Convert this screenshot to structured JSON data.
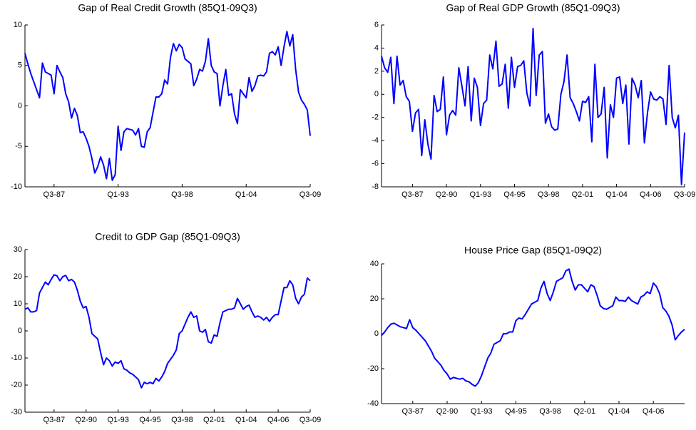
{
  "chart_data": [
    {
      "type": "line",
      "title": "Gap of Real Credit Growth (85Q1-09Q3)",
      "color": "#0000ff",
      "categories": [
        null,
        null,
        null,
        null,
        null,
        null,
        null,
        null,
        null,
        null,
        "Q3-87",
        null,
        null,
        null,
        null,
        null,
        null,
        null,
        null,
        null,
        null,
        null,
        null,
        null,
        null,
        null,
        null,
        null,
        null,
        null,
        null,
        null,
        "Q1-93",
        null,
        null,
        null,
        null,
        null,
        null,
        null,
        null,
        null,
        null,
        null,
        null,
        null,
        null,
        null,
        null,
        null,
        null,
        null,
        null,
        null,
        "Q3-98",
        null,
        null,
        null,
        null,
        null,
        null,
        null,
        null,
        null,
        null,
        null,
        null,
        null,
        null,
        null,
        null,
        null,
        null,
        null,
        null,
        null,
        "Q1-04",
        null,
        null,
        null,
        null,
        null,
        null,
        null,
        null,
        null,
        null,
        null,
        null,
        null,
        null,
        null,
        null,
        null,
        null,
        null,
        null,
        null,
        "Q3-09"
      ],
      "values": [
        6.5,
        5.2,
        4,
        3,
        2,
        1,
        5.3,
        4.2,
        4,
        3.8,
        1.5,
        5,
        4.2,
        3.5,
        1.5,
        0.5,
        -1.5,
        -0.3,
        -1.2,
        -3.3,
        -3.2,
        -4,
        -5,
        -6.5,
        -8.3,
        -7.5,
        -6.3,
        -7.3,
        -9,
        -6.5,
        -9.2,
        -8.5,
        -2.5,
        -5.5,
        -3.2,
        -2.8,
        -2.9,
        -3,
        -3.6,
        -2.8,
        -5,
        -5.1,
        -3.2,
        -2.7,
        -0.8,
        1.1,
        1.1,
        1.5,
        3.2,
        2.7,
        6,
        7.7,
        6.8,
        7.6,
        7.2,
        5.8,
        5.5,
        5.2,
        2.5,
        3.3,
        4.5,
        4.3,
        5.5,
        8.3,
        5,
        4.2,
        4,
        0,
        2.5,
        4.5,
        1.3,
        1.5,
        -1,
        -2.2,
        2,
        1.5,
        1,
        3.5,
        1.8,
        2.5,
        3.7,
        3.8,
        3.7,
        4.2,
        6.5,
        6.7,
        6.3,
        7.3,
        5,
        7.3,
        9.2,
        7.4,
        8.8,
        4.5,
        1.7,
        0.7,
        0.2,
        -0.5,
        -3.7
      ],
      "ylim": [
        -10,
        10
      ],
      "yticks": [
        -10,
        -5,
        0,
        5,
        10
      ]
    },
    {
      "type": "line",
      "title": "Gap of Real GDP Growth (85Q1-09Q3)",
      "color": "#0000ff",
      "categories": [
        null,
        null,
        null,
        null,
        null,
        null,
        null,
        null,
        null,
        null,
        "Q3-87",
        null,
        null,
        null,
        null,
        null,
        null,
        null,
        null,
        null,
        null,
        "Q2-90",
        null,
        null,
        null,
        null,
        null,
        null,
        null,
        null,
        null,
        null,
        "Q1-93",
        null,
        null,
        null,
        null,
        null,
        null,
        null,
        null,
        null,
        null,
        "Q4-95",
        null,
        null,
        null,
        null,
        null,
        null,
        null,
        null,
        null,
        null,
        "Q3-98",
        null,
        null,
        null,
        null,
        null,
        null,
        null,
        null,
        null,
        null,
        "Q2-01",
        null,
        null,
        null,
        null,
        null,
        null,
        null,
        null,
        null,
        null,
        "Q1-04",
        null,
        null,
        null,
        null,
        null,
        null,
        null,
        null,
        null,
        null,
        "Q4-06",
        null,
        null,
        null,
        null,
        null,
        null,
        null,
        null,
        null,
        null,
        "Q3-09"
      ],
      "values": [
        3.3,
        2.3,
        1.9,
        3.2,
        -0.8,
        3.3,
        0.8,
        1.2,
        -0.2,
        -0.6,
        -3.2,
        -1.6,
        -1.3,
        -5.3,
        -2.2,
        -4.3,
        -5.6,
        -0.1,
        -1.5,
        -1.3,
        1.5,
        -3.5,
        -1.8,
        -1.4,
        -1.8,
        2.3,
        0.7,
        -1,
        2.4,
        -2.3,
        1.4,
        0.6,
        -2.7,
        -0.8,
        -0.5,
        3.4,
        2.2,
        4.6,
        0.7,
        0.9,
        2.6,
        -1.2,
        3.2,
        0.6,
        2.4,
        2.5,
        2.9,
        0.1,
        -1,
        5.7,
        -0.1,
        3.4,
        3.7,
        -2.5,
        -1.7,
        -2.8,
        -3.1,
        -3,
        0,
        1.1,
        3.4,
        -0.3,
        -0.8,
        -1.5,
        -2.3,
        -0.6,
        -0.7,
        -0.2,
        -4.1,
        2.6,
        -2,
        -1.7,
        0.6,
        -5.5,
        -0.9,
        -2,
        1.4,
        1.5,
        -0.8,
        0.8,
        -4.3,
        1.4,
        0.8,
        -0.3,
        1.2,
        -4.2,
        -1.6,
        0.2,
        -0.4,
        -0.5,
        -0.2,
        -0.4,
        -2.6,
        2.5,
        -2,
        -2.9,
        -1.8,
        -7.8,
        -3.3
      ],
      "ylim": [
        -8,
        6
      ],
      "yticks": [
        -8,
        -6,
        -4,
        -2,
        0,
        2,
        4,
        6
      ]
    },
    {
      "type": "line",
      "title": "Credit to GDP Gap (85Q1-09Q3)",
      "color": "#0000ff",
      "categories": [
        null,
        null,
        null,
        null,
        null,
        null,
        null,
        null,
        null,
        null,
        "Q3-87",
        null,
        null,
        null,
        null,
        null,
        null,
        null,
        null,
        null,
        null,
        "Q2-90",
        null,
        null,
        null,
        null,
        null,
        null,
        null,
        null,
        null,
        null,
        "Q1-93",
        null,
        null,
        null,
        null,
        null,
        null,
        null,
        null,
        null,
        null,
        "Q4-95",
        null,
        null,
        null,
        null,
        null,
        null,
        null,
        null,
        null,
        null,
        "Q3-98",
        null,
        null,
        null,
        null,
        null,
        null,
        null,
        null,
        null,
        null,
        "Q2-01",
        null,
        null,
        null,
        null,
        null,
        null,
        null,
        null,
        null,
        null,
        "Q1-04",
        null,
        null,
        null,
        null,
        null,
        null,
        null,
        null,
        null,
        null,
        "Q4-06",
        null,
        null,
        null,
        null,
        null,
        null,
        null,
        null,
        null,
        null,
        "Q3-09"
      ],
      "values": [
        8,
        8.5,
        7,
        7,
        7.5,
        14,
        16,
        18,
        17,
        19,
        20.7,
        20.3,
        18.5,
        20,
        20.5,
        18.5,
        19,
        18,
        15,
        11,
        8.5,
        9,
        5,
        -1,
        -2,
        -3,
        -8,
        -12.5,
        -10,
        -11,
        -13,
        -11.5,
        -12,
        -11,
        -14,
        -14.5,
        -15.5,
        -16,
        -17,
        -18,
        -21,
        -19,
        -19.5,
        -19,
        -19.5,
        -17.5,
        -18.5,
        -17,
        -15,
        -12,
        -10.5,
        -9,
        -7,
        -1,
        0,
        2.5,
        5,
        7,
        5,
        5.5,
        0,
        -0.5,
        0.5,
        -4,
        -4.5,
        -1.5,
        -2,
        3,
        7,
        7.5,
        8,
        8,
        8.5,
        12,
        10,
        8,
        9,
        9.5,
        7,
        5,
        5.5,
        5,
        4,
        5,
        3.5,
        5,
        6,
        6,
        11,
        16,
        16,
        18.5,
        17,
        12,
        10,
        12.5,
        13.5,
        19.5,
        18.5
      ],
      "ylim": [
        -30,
        30
      ],
      "yticks": [
        -30,
        -20,
        -10,
        0,
        10,
        20,
        30
      ]
    },
    {
      "type": "line",
      "title": "House Price Gap (85Q1-09Q2)",
      "color": "#0000ff",
      "categories": [
        null,
        null,
        null,
        null,
        null,
        null,
        null,
        null,
        null,
        null,
        "Q3-87",
        null,
        null,
        null,
        null,
        null,
        null,
        null,
        null,
        null,
        null,
        "Q2-90",
        null,
        null,
        null,
        null,
        null,
        null,
        null,
        null,
        null,
        null,
        "Q1-93",
        null,
        null,
        null,
        null,
        null,
        null,
        null,
        null,
        null,
        null,
        "Q4-95",
        null,
        null,
        null,
        null,
        null,
        null,
        null,
        null,
        null,
        null,
        "Q3-98",
        null,
        null,
        null,
        null,
        null,
        null,
        null,
        null,
        null,
        null,
        "Q2-01",
        null,
        null,
        null,
        null,
        null,
        null,
        null,
        null,
        null,
        null,
        "Q1-04",
        null,
        null,
        null,
        null,
        null,
        null,
        null,
        null,
        null,
        null,
        "Q4-06",
        null,
        null,
        null,
        null,
        null,
        null,
        null,
        null,
        null,
        null
      ],
      "values": [
        -1,
        1,
        3.5,
        5.5,
        6,
        5,
        4,
        3.5,
        3,
        8,
        3.5,
        2,
        0,
        -2,
        -4,
        -7,
        -10,
        -14,
        -16,
        -18,
        -21,
        -23,
        -26,
        -25,
        -25.5,
        -26,
        -25.5,
        -27,
        -27.5,
        -29,
        -30,
        -28,
        -24,
        -19,
        -14,
        -11,
        -6,
        -5,
        -4,
        0,
        0,
        1,
        1,
        7.5,
        9,
        8.5,
        11,
        14,
        17,
        18,
        19,
        26,
        30,
        23,
        19,
        24,
        30,
        31,
        32,
        36,
        37,
        30,
        25,
        28,
        28,
        26,
        24,
        28,
        27,
        22,
        16,
        14.5,
        14,
        15,
        16,
        21,
        19,
        19,
        18.5,
        21,
        19,
        18,
        17,
        21,
        22,
        24,
        23,
        29,
        27,
        23,
        15,
        13,
        10,
        5,
        -3.5,
        -1,
        1,
        2.5
      ],
      "ylim": [
        -40,
        40
      ],
      "yticks": [
        -40,
        -20,
        0,
        20,
        40
      ]
    }
  ]
}
